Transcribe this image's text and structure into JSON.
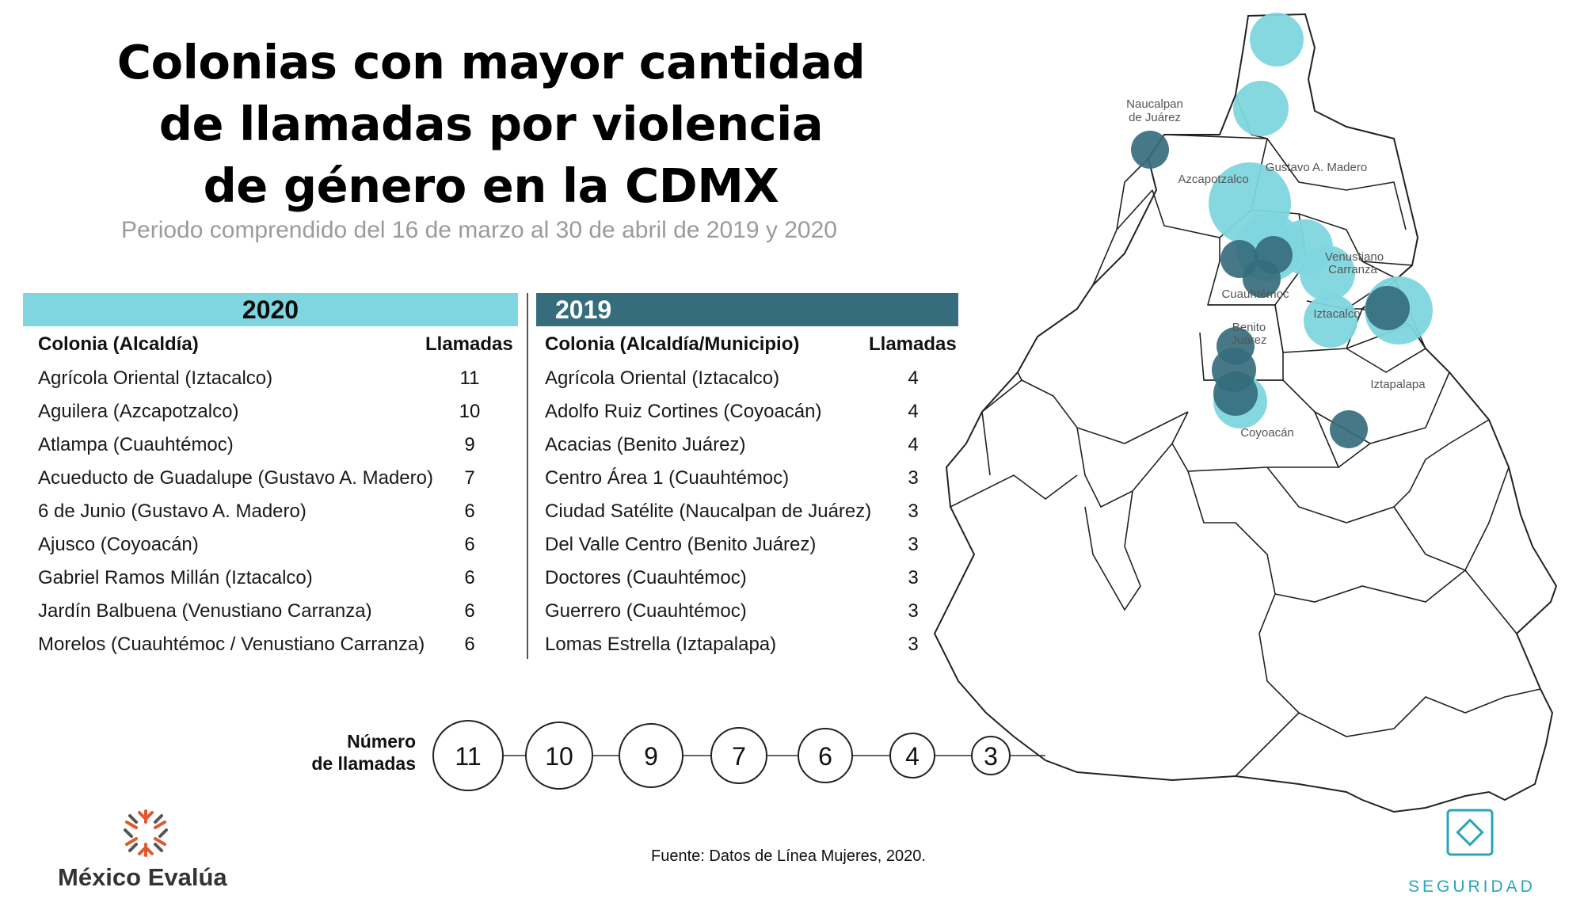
{
  "title": {
    "line1": "Colonias con mayor cantidad",
    "line2": "de llamadas por violencia",
    "line3": "de género en la CDMX"
  },
  "subtitle": "Periodo comprendido del 16 de marzo al 30 de abril de 2019 y 2020",
  "table_2020": {
    "year": "2020",
    "color": "#7fd6de",
    "col_colonia": "Colonia (Alcaldía)",
    "col_llamadas": "Llamadas",
    "rows": [
      {
        "colonia": "Agrícola Oriental (Iztacalco)",
        "llamadas": "11"
      },
      {
        "colonia": "Aguilera (Azcapotzalco)",
        "llamadas": "10"
      },
      {
        "colonia": "Atlampa (Cuauhtémoc)",
        "llamadas": "9"
      },
      {
        "colonia": "Acueducto de Guadalupe (Gustavo A. Madero)",
        "llamadas": "7"
      },
      {
        "colonia": "6 de Junio (Gustavo A. Madero)",
        "llamadas": "6"
      },
      {
        "colonia": "Ajusco (Coyoacán)",
        "llamadas": "6"
      },
      {
        "colonia": "Gabriel Ramos Millán (Iztacalco)",
        "llamadas": "6"
      },
      {
        "colonia": "Jardín Balbuena (Venustiano Carranza)",
        "llamadas": "6"
      },
      {
        "colonia": "Morelos (Cuauhtémoc / Venustiano Carranza)",
        "llamadas": "6"
      }
    ]
  },
  "table_2019": {
    "year": "2019",
    "color": "#366d7d",
    "col_colonia": "Colonia (Alcaldía/Municipio)",
    "col_llamadas": "Llamadas",
    "rows": [
      {
        "colonia": "Agrícola Oriental (Iztacalco)",
        "llamadas": "4"
      },
      {
        "colonia": "Adolfo Ruiz Cortines (Coyoacán)",
        "llamadas": "4"
      },
      {
        "colonia": "Acacias (Benito Juárez)",
        "llamadas": "4"
      },
      {
        "colonia": "Centro Área 1 (Cuauhtémoc)",
        "llamadas": "3"
      },
      {
        "colonia": "Ciudad Satélite (Naucalpan de Juárez)",
        "llamadas": "3"
      },
      {
        "colonia": "Del Valle Centro (Benito Juárez)",
        "llamadas": "3"
      },
      {
        "colonia": "Doctores (Cuauhtémoc)",
        "llamadas": "3"
      },
      {
        "colonia": "Guerrero (Cuauhtémoc)",
        "llamadas": "3"
      },
      {
        "colonia": "Lomas Estrella (Iztapalapa)",
        "llamadas": "3"
      }
    ]
  },
  "legend": {
    "label_line1": "Número",
    "label_line2": "de llamadas",
    "values": [
      "11",
      "10",
      "9",
      "7",
      "6",
      "4",
      "3"
    ]
  },
  "map": {
    "labels": [
      {
        "name": "Naucalpan",
        "key": "naucalpan-1"
      },
      {
        "name": "de Juárez",
        "key": "naucalpan-2"
      },
      {
        "name": "Gustavo A. Madero",
        "key": "gam"
      },
      {
        "name": "Azcapotzalco",
        "key": "azcapotzalco"
      },
      {
        "name": "Venustiano",
        "key": "vc-1"
      },
      {
        "name": "Carranza",
        "key": "vc-2"
      },
      {
        "name": "Cuauhtémoc",
        "key": "cuauhtemoc"
      },
      {
        "name": "Benito",
        "key": "bj-1"
      },
      {
        "name": "Juárez",
        "key": "bj-2"
      },
      {
        "name": "Iztacalco",
        "key": "iztacalco"
      },
      {
        "name": "Iztapalapa",
        "key": "iztapalapa"
      },
      {
        "name": "Coyoacán",
        "key": "coyoacan"
      }
    ],
    "color_2020": "#7fd6de",
    "color_2019": "#366d7d"
  },
  "source": "Fuente: Datos de Línea Mujeres, 2020.",
  "brand": "México Evalúa",
  "section": "SEGURIDAD"
}
